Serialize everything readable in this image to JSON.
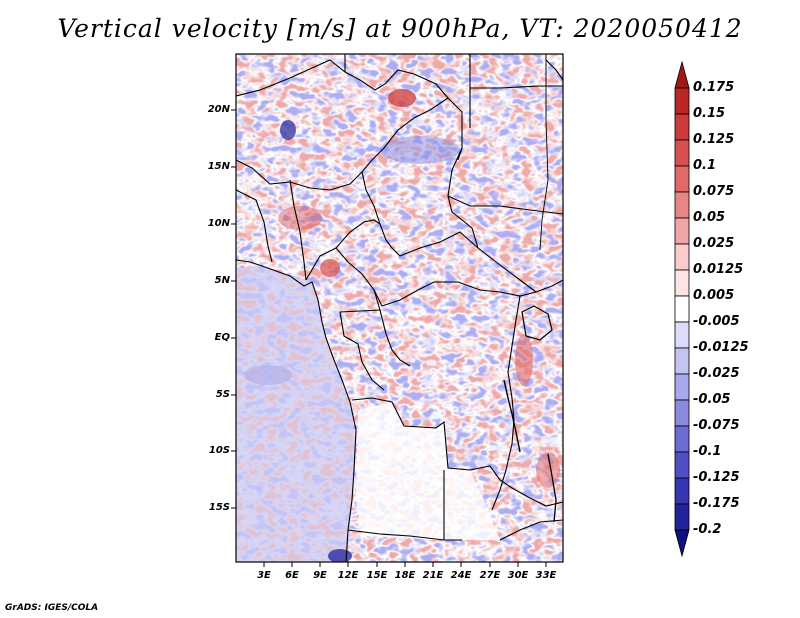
{
  "title": "Vertical velocity [m/s] at 900hPa, VT: 2020050412",
  "credit": "GrADS: IGES/COLA",
  "latitude_labels": [
    "20N",
    "15N",
    "10N",
    "5N",
    "EQ",
    "5S",
    "10S",
    "15S"
  ],
  "longitude_labels": [
    "3E",
    "6E",
    "9E",
    "12E",
    "15E",
    "18E",
    "21E",
    "24E",
    "27E",
    "30E",
    "33E"
  ],
  "colorbar": {
    "levels": [
      "0.175",
      "0.15",
      "0.125",
      "0.1",
      "0.075",
      "0.05",
      "0.025",
      "0.0125",
      "0.005",
      "-0.005",
      "-0.0125",
      "-0.025",
      "-0.05",
      "-0.075",
      "-0.1",
      "-0.125",
      "-0.175",
      "-0.2"
    ],
    "colors": [
      "#a01818",
      "#bb2626",
      "#cc3a3a",
      "#d95050",
      "#e06a6a",
      "#e88686",
      "#f0a6a6",
      "#f8cccc",
      "#fce4e4",
      "#ffffff",
      "#dcdcfa",
      "#c4c4f4",
      "#a8a8ec",
      "#8a8ae0",
      "#6c6cd4",
      "#5050c4",
      "#3636b0",
      "#22229a",
      "#101080"
    ]
  },
  "colors": {
    "border": "#000000",
    "land_no_data": "#ffffff"
  }
}
